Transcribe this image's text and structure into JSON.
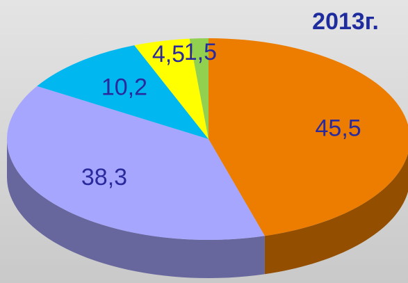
{
  "chart_data": {
    "type": "pie",
    "title": "2013г.",
    "categories": [
      null,
      null,
      null,
      null,
      null
    ],
    "values": [
      45.5,
      38.3,
      10.2,
      4.5,
      1.5
    ],
    "value_labels": [
      "45,5",
      "38,3",
      "10,2",
      "4,5",
      "1,5"
    ],
    "colors": [
      "#ed7d00",
      "#a6a6ff",
      "#00b8ef",
      "#ffff00",
      "#92d050"
    ]
  }
}
